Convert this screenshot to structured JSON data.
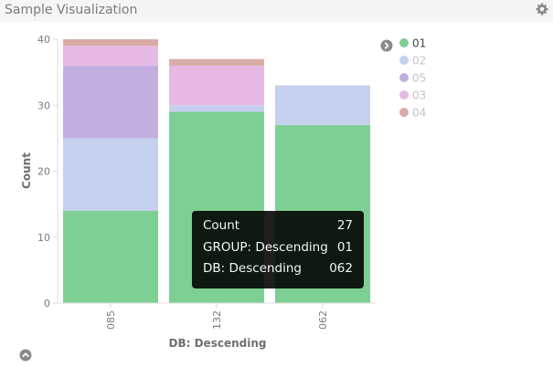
{
  "panel": {
    "title": "Sample Visualization"
  },
  "chart_data": {
    "type": "bar",
    "stacked": true,
    "categories": [
      "085",
      "132",
      "062"
    ],
    "xlabel": "DB: Descending",
    "ylabel": "Count",
    "ylim": [
      0,
      40
    ],
    "yticks": [
      0,
      10,
      20,
      30,
      40
    ],
    "grid": false,
    "legend_position": "right",
    "series": [
      {
        "name": "01",
        "color": "#7dcf94",
        "values": [
          14,
          29,
          27
        ]
      },
      {
        "name": "02",
        "color": "#c5cfee",
        "values": [
          11,
          1,
          6
        ]
      },
      {
        "name": "05",
        "color": "#c3aee0",
        "values": [
          11,
          0,
          0
        ]
      },
      {
        "name": "03",
        "color": "#e6b9e4",
        "values": [
          3,
          6,
          0
        ]
      },
      {
        "name": "04",
        "color": "#d9aca6",
        "values": [
          1,
          1,
          0
        ]
      }
    ],
    "legend_active": "01"
  },
  "tooltip": {
    "rows": [
      {
        "label": "Count",
        "value": "27"
      },
      {
        "label": "GROUP: Descending",
        "value": "01"
      },
      {
        "label": "DB: Descending",
        "value": "062"
      }
    ]
  }
}
